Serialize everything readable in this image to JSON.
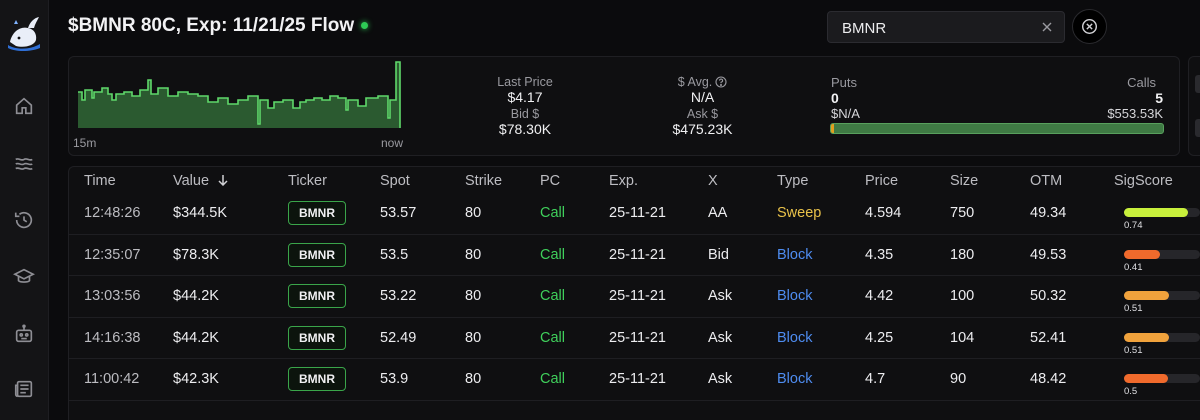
{
  "header": {
    "title": "$BMNR 80C, Exp: 11/21/25 Flow"
  },
  "search": {
    "value": "BMNR"
  },
  "summary": {
    "spark_labels": [
      "15m",
      "now"
    ],
    "last_price_label": "Last Price",
    "last_price": "$4.17",
    "bid_label": "Bid $",
    "bid": "$78.30K",
    "avg_label": "$ Avg.",
    "avg": "N/A",
    "ask_label": "Ask $",
    "ask": "$475.23K",
    "puts_label": "Puts",
    "puts_count": "0",
    "puts_value": "$N/A",
    "calls_label": "Calls",
    "calls_count": "5",
    "calls_value": "$553.53K",
    "puts_fraction": 0.01
  },
  "table": {
    "columns": [
      "Time",
      "Value",
      "Ticker",
      "Spot",
      "Strike",
      "PC",
      "Exp.",
      "X",
      "Type",
      "Price",
      "Size",
      "OTM",
      "SigScore"
    ],
    "rows": [
      {
        "time": "12:48:26",
        "value": "$344.5K",
        "ticker": "BMNR",
        "spot": "53.57",
        "strike": "80",
        "pc": "Call",
        "exp": "25-11-21",
        "x": "AA",
        "type": "Sweep",
        "price": "4.594",
        "size": "750",
        "otm": "49.34",
        "sigscore": "0.74",
        "sig_fraction": 0.84,
        "sig_color": "#c8f03c"
      },
      {
        "time": "12:35:07",
        "value": "$78.3K",
        "ticker": "BMNR",
        "spot": "53.5",
        "strike": "80",
        "pc": "Call",
        "exp": "25-11-21",
        "x": "Bid",
        "type": "Block",
        "price": "4.35",
        "size": "180",
        "otm": "49.53",
        "sigscore": "0.41",
        "sig_fraction": 0.47,
        "sig_color": "#f06a2c"
      },
      {
        "time": "13:03:56",
        "value": "$44.2K",
        "ticker": "BMNR",
        "spot": "53.22",
        "strike": "80",
        "pc": "Call",
        "exp": "25-11-21",
        "x": "Ask",
        "type": "Block",
        "price": "4.42",
        "size": "100",
        "otm": "50.32",
        "sigscore": "0.51",
        "sig_fraction": 0.59,
        "sig_color": "#f0a23c"
      },
      {
        "time": "14:16:38",
        "value": "$44.2K",
        "ticker": "BMNR",
        "spot": "52.49",
        "strike": "80",
        "pc": "Call",
        "exp": "25-11-21",
        "x": "Ask",
        "type": "Block",
        "price": "4.25",
        "size": "104",
        "otm": "52.41",
        "sigscore": "0.51",
        "sig_fraction": 0.59,
        "sig_color": "#f0a23c"
      },
      {
        "time": "11:00:42",
        "value": "$42.3K",
        "ticker": "BMNR",
        "spot": "53.9",
        "strike": "80",
        "pc": "Call",
        "exp": "25-11-21",
        "x": "Ask",
        "type": "Block",
        "price": "4.7",
        "size": "90",
        "otm": "48.42",
        "sigscore": "0.5",
        "sig_fraction": 0.58,
        "sig_color": "#f06a2c"
      }
    ]
  },
  "colors": {
    "accent_green": "#3fcf5b",
    "sweep": "#e9c24a",
    "block": "#4e8cf0"
  }
}
